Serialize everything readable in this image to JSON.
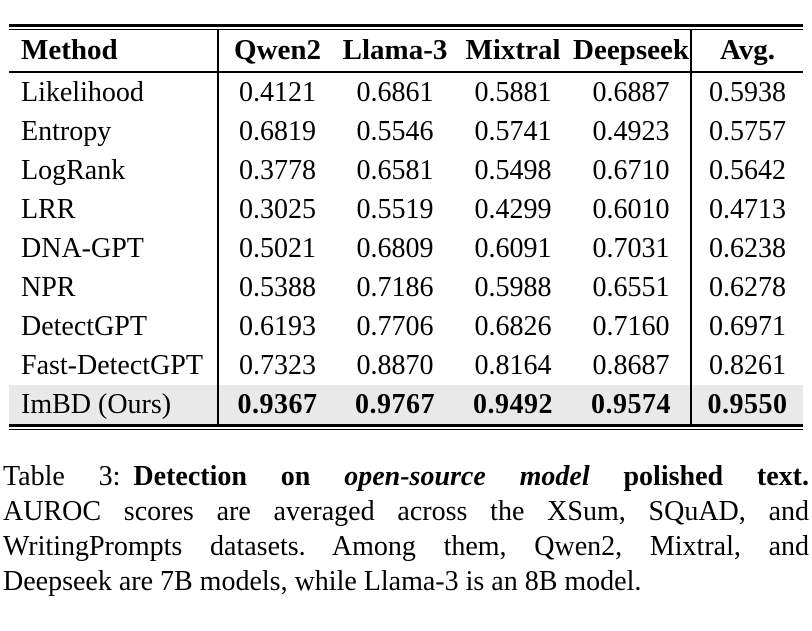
{
  "table": {
    "header": {
      "method": "Method",
      "models": [
        "Qwen2",
        "Llama-3",
        "Mixtral",
        "Deepseek"
      ],
      "avg": "Avg."
    },
    "rows": [
      {
        "label": "Likelihood",
        "values": [
          "0.4121",
          "0.6861",
          "0.5881",
          "0.6887",
          "0.5938"
        ]
      },
      {
        "label": "Entropy",
        "values": [
          "0.6819",
          "0.5546",
          "0.5741",
          "0.4923",
          "0.5757"
        ]
      },
      {
        "label": "LogRank",
        "values": [
          "0.3778",
          "0.6581",
          "0.5498",
          "0.6710",
          "0.5642"
        ]
      },
      {
        "label": "LRR",
        "values": [
          "0.3025",
          "0.5519",
          "0.4299",
          "0.6010",
          "0.4713"
        ]
      },
      {
        "label": "DNA-GPT",
        "values": [
          "0.5021",
          "0.6809",
          "0.6091",
          "0.7031",
          "0.6238"
        ]
      },
      {
        "label": "NPR",
        "values": [
          "0.5388",
          "0.7186",
          "0.5988",
          "0.6551",
          "0.6278"
        ]
      },
      {
        "label": "DetectGPT",
        "values": [
          "0.6193",
          "0.7706",
          "0.6826",
          "0.7160",
          "0.6971"
        ]
      },
      {
        "label": "Fast-DetectGPT",
        "values": [
          "0.7323",
          "0.8870",
          "0.8164",
          "0.8687",
          "0.8261"
        ]
      },
      {
        "label": "ImBD (Ours)",
        "values": [
          "0.9367",
          "0.9767",
          "0.9492",
          "0.9574",
          "0.9550"
        ],
        "highlight": true
      }
    ],
    "highlight_color": "#e9e9e9",
    "rule_color": "#000000"
  },
  "caption": {
    "label": "Table 3:",
    "title_bold_1": "Detection on",
    "title_italic": "open-source model",
    "title_bold_2": "polished text.",
    "line2": "AUROC scores are averaged across the XSum, SQuAD, and",
    "line3": "WritingPrompts datasets. Among them, Qwen2, Mixtral, and",
    "line4": "Deepseek are 7B models, while Llama-3 is an 8B model."
  }
}
